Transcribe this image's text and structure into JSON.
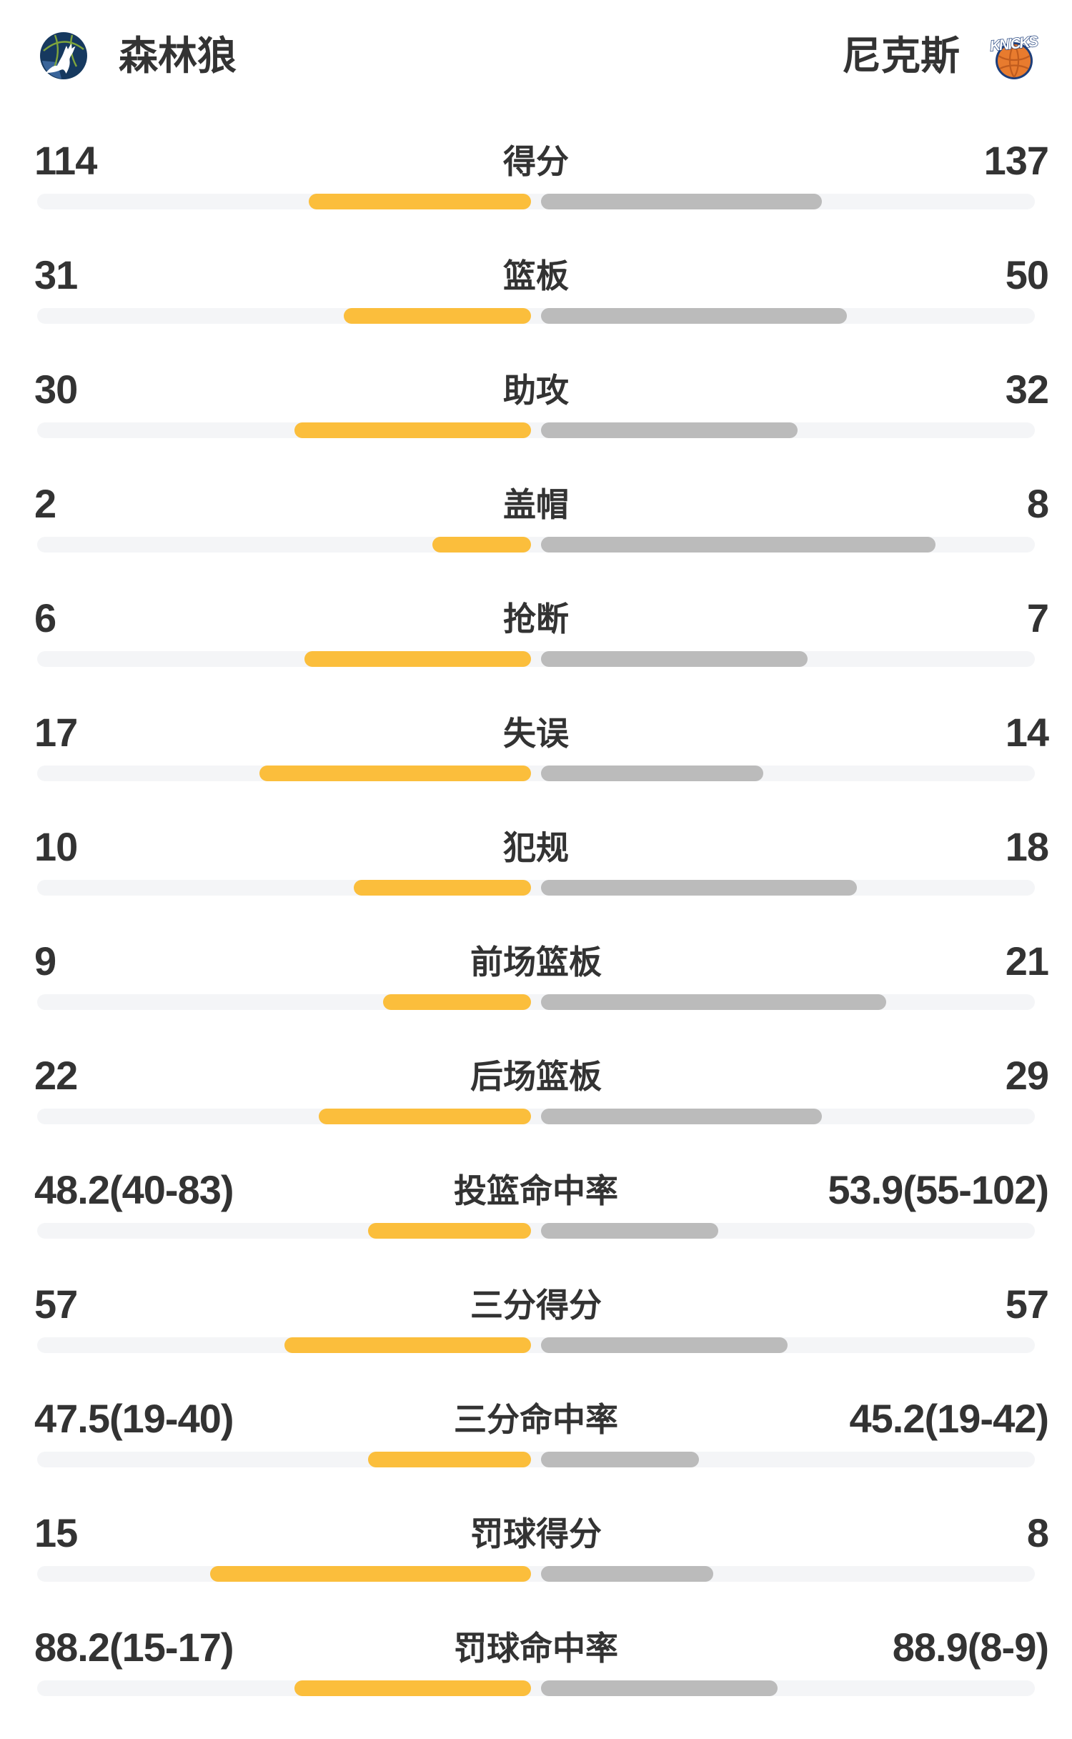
{
  "header": {
    "left_team": {
      "name": "森林狼"
    },
    "right_team": {
      "name": "尼克斯",
      "logo_text": "KNICKS"
    }
  },
  "colors": {
    "home_bar": "#FBBE3C",
    "away_bar": "#BBBBBB",
    "track": "#F4F5F7",
    "text": "#333333"
  },
  "chart_data": {
    "type": "bar",
    "orientation": "horizontal-paired-from-center",
    "title": "",
    "grid": false,
    "legend_position": "top",
    "categories": [
      "得分",
      "篮板",
      "助攻",
      "盖帽",
      "抢断",
      "失误",
      "犯规",
      "前场篮板",
      "后场篮板",
      "投篮命中率",
      "三分得分",
      "三分命中率",
      "罚球得分",
      "罚球命中率"
    ],
    "series": [
      {
        "name": "森林狼",
        "color": "#FBBE3C",
        "values": [
          114,
          31,
          30,
          2,
          6,
          17,
          10,
          9,
          22,
          48.2,
          57,
          47.5,
          15,
          88.2
        ],
        "labels": [
          "114",
          "31",
          "30",
          "2",
          "6",
          "17",
          "10",
          "9",
          "22",
          "48.2(40-83)",
          "57",
          "47.5(19-40)",
          "15",
          "88.2(15-17)"
        ]
      },
      {
        "name": "尼克斯",
        "color": "#BBBBBB",
        "values": [
          137,
          50,
          32,
          8,
          7,
          14,
          18,
          21,
          29,
          53.9,
          57,
          45.2,
          8,
          88.9
        ],
        "labels": [
          "137",
          "50",
          "32",
          "8",
          "7",
          "14",
          "18",
          "21",
          "29",
          "53.9(55-102)",
          "57",
          "45.2(19-42)",
          "8",
          "88.9(8-9)"
        ]
      }
    ],
    "bar_fractions": [
      [
        0.45,
        0.57
      ],
      [
        0.38,
        0.62
      ],
      [
        0.48,
        0.52
      ],
      [
        0.2,
        0.8
      ],
      [
        0.46,
        0.54
      ],
      [
        0.55,
        0.45
      ],
      [
        0.36,
        0.64
      ],
      [
        0.3,
        0.7
      ],
      [
        0.43,
        0.57
      ],
      [
        0.33,
        0.36
      ],
      [
        0.5,
        0.5
      ],
      [
        0.33,
        0.32
      ],
      [
        0.65,
        0.35
      ],
      [
        0.48,
        0.48
      ]
    ]
  }
}
